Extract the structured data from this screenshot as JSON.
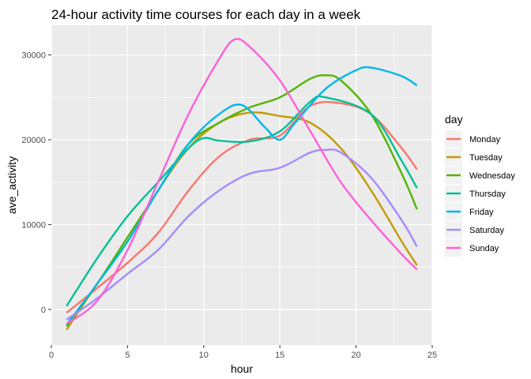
{
  "chart_data": {
    "type": "line",
    "title": "24-hour activity time courses for each day in a week",
    "xlabel": "hour",
    "ylabel": "ave_activity",
    "xlim": [
      0,
      25
    ],
    "ylim": [
      -4200,
      33500
    ],
    "x_ticks": [
      0,
      5,
      10,
      15,
      20,
      25
    ],
    "x_tick_labels": [
      "0",
      "5",
      "10",
      "15",
      "20",
      "25"
    ],
    "y_ticks": [
      0,
      10000,
      20000,
      30000
    ],
    "y_tick_labels": [
      "0",
      "10000",
      "20000",
      "30000"
    ],
    "grid": true,
    "legend": {
      "title": "day",
      "position": "right"
    },
    "series": [
      {
        "name": "Monday",
        "color": "#F8766D",
        "x": [
          1,
          3,
          5,
          7,
          9,
          11,
          13,
          15,
          17,
          19,
          21,
          23,
          24
        ],
        "y": [
          -400,
          2500,
          5500,
          9000,
          14000,
          18000,
          20000,
          20500,
          24000,
          24300,
          23000,
          19000,
          16500
        ]
      },
      {
        "name": "Tuesday",
        "color": "#C49A00",
        "x": [
          1,
          3,
          5,
          7,
          9,
          11,
          13,
          15,
          17,
          19,
          21,
          23,
          24
        ],
        "y": [
          -2400,
          3000,
          8000,
          14000,
          19000,
          22000,
          23200,
          22800,
          22000,
          19000,
          14000,
          8000,
          5200
        ]
      },
      {
        "name": "Wednesday",
        "color": "#53B400",
        "x": [
          1,
          3,
          5,
          7,
          9,
          11,
          13,
          15,
          17,
          18,
          19,
          21,
          23,
          24
        ],
        "y": [
          -2000,
          3000,
          8500,
          14000,
          19500,
          22000,
          23800,
          25000,
          27200,
          27600,
          27000,
          23000,
          16000,
          11800
        ]
      },
      {
        "name": "Thursday",
        "color": "#00C094",
        "x": [
          1,
          3,
          5,
          7,
          9,
          10,
          11,
          13,
          15,
          17,
          18,
          21,
          23,
          24
        ],
        "y": [
          400,
          6000,
          11000,
          15000,
          19000,
          20200,
          19900,
          19800,
          21000,
          24500,
          25000,
          23000,
          17500,
          14300
        ]
      },
      {
        "name": "Friday",
        "color": "#00B6EB",
        "x": [
          1,
          3,
          5,
          7,
          9,
          11,
          12.5,
          14,
          15,
          16,
          18,
          20,
          21,
          23,
          24
        ],
        "y": [
          -1800,
          3000,
          8000,
          14000,
          19500,
          23000,
          24100,
          21500,
          20000,
          22000,
          26000,
          28200,
          28500,
          27500,
          26400
        ]
      },
      {
        "name": "Saturday",
        "color": "#A58AFF",
        "x": [
          1,
          3,
          5,
          7,
          9,
          11,
          13,
          15,
          17,
          18,
          19,
          21,
          23,
          24
        ],
        "y": [
          -1200,
          1300,
          4200,
          7000,
          11000,
          14000,
          16000,
          16700,
          18500,
          18800,
          18500,
          15500,
          10500,
          7400
        ]
      },
      {
        "name": "Sunday",
        "color": "#FB61D7",
        "x": [
          1,
          3,
          5,
          7,
          9,
          11,
          12,
          13,
          15,
          17,
          19,
          21,
          23,
          24
        ],
        "y": [
          -1700,
          1000,
          7000,
          15000,
          23000,
          29500,
          31800,
          31000,
          27000,
          21000,
          15000,
          10500,
          6500,
          4700
        ]
      }
    ]
  }
}
